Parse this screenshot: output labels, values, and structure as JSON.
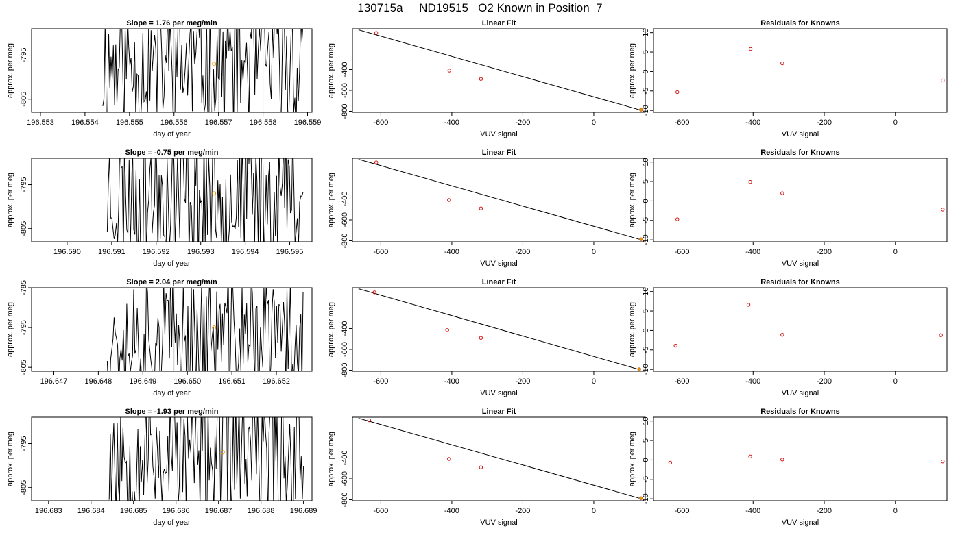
{
  "figure": {
    "title": "130715a     ND19515   O2 Known in Position  7"
  },
  "chart_data": [
    {
      "type": "line",
      "title": "Slope =  1.76  per meg/min",
      "xlabel": "day of year",
      "ylabel": "approx. per meg",
      "xlim": [
        196.5528,
        196.5591
      ],
      "ylim": [
        -808,
        -789
      ],
      "xticks": [
        "196.553",
        "196.554",
        "196.555",
        "196.556",
        "196.557",
        "196.558",
        "196.559"
      ],
      "yticks": [
        "-795",
        "-805"
      ],
      "ytick_values": [
        -795,
        -805
      ],
      "vlines": [
        196.556,
        196.557,
        196.558
      ],
      "x_start": 196.5544,
      "x_end": 196.5589,
      "noise_seed": 11,
      "marker": {
        "x": 196.5569,
        "y": -797
      }
    },
    {
      "type": "scatter",
      "title": "Linear Fit",
      "xlabel": "VUV signal",
      "ylabel": "approx. per meg",
      "xlim": [
        -680,
        145
      ],
      "ylim": [
        -810,
        -10
      ],
      "xticks": [
        "-600",
        "-400",
        "-200",
        "0"
      ],
      "xtick_values": [
        -600,
        -400,
        -200,
        0
      ],
      "yticks": [
        "-400",
        "-600",
        "-800"
      ],
      "ytick_values": [
        -400,
        -600,
        -800
      ],
      "points": [
        [
          -613,
          -50
        ],
        [
          -407,
          -410
        ],
        [
          -318,
          -490
        ],
        [
          133,
          -785
        ]
      ],
      "fit_line": [
        [
          -663,
          -20
        ],
        [
          133,
          -790
        ]
      ],
      "highlight_index": 3
    },
    {
      "type": "scatter",
      "title": "Residuals for Knowns",
      "xlabel": "VUV signal",
      "ylabel": "approx. per meg",
      "xlim": [
        -680,
        145
      ],
      "ylim": [
        -10.5,
        11
      ],
      "xticks": [
        "-600",
        "-400",
        "-200",
        "0"
      ],
      "xtick_values": [
        -600,
        -400,
        -200,
        0
      ],
      "yticks": [
        "-10",
        "-5",
        "0",
        "5",
        "10"
      ],
      "ytick_values": [
        -10,
        -5,
        0,
        5,
        10
      ],
      "points": [
        [
          -613,
          -5.3
        ],
        [
          -407,
          5.8
        ],
        [
          -318,
          2.1
        ],
        [
          133,
          -2.3
        ]
      ]
    },
    {
      "type": "line",
      "title": "Slope =  -0.75  per meg/min",
      "xlabel": "day of year",
      "ylabel": "approx. per meg",
      "xlim": [
        196.5892,
        196.5955
      ],
      "ylim": [
        -808,
        -789
      ],
      "xticks": [
        "196.590",
        "196.591",
        "196.592",
        "196.593",
        "196.594",
        "196.595"
      ],
      "yticks": [
        "-795",
        "-805"
      ],
      "ytick_values": [
        -795,
        -805
      ],
      "vlines": [
        196.5924,
        196.5942
      ],
      "x_start": 196.5909,
      "x_end": 196.5953,
      "noise_seed": 23,
      "marker": {
        "x": 196.5933,
        "y": -797
      }
    },
    {
      "type": "scatter",
      "title": "Linear Fit",
      "xlabel": "VUV signal",
      "ylabel": "approx. per meg",
      "xlim": [
        -680,
        145
      ],
      "ylim": [
        -810,
        -10
      ],
      "xticks": [
        "-600",
        "-400",
        "-200",
        "0"
      ],
      "xtick_values": [
        -600,
        -400,
        -200,
        0
      ],
      "yticks": [
        "-400",
        "-600",
        "-800"
      ],
      "ytick_values": [
        -400,
        -600,
        -800
      ],
      "points": [
        [
          -613,
          -50
        ],
        [
          -408,
          -410
        ],
        [
          -318,
          -490
        ],
        [
          133,
          -785
        ]
      ],
      "fit_line": [
        [
          -663,
          -20
        ],
        [
          133,
          -790
        ]
      ],
      "highlight_index": 3
    },
    {
      "type": "scatter",
      "title": "Residuals for Knowns",
      "xlabel": "VUV signal",
      "ylabel": "approx. per meg",
      "xlim": [
        -680,
        145
      ],
      "ylim": [
        -10.5,
        11
      ],
      "xticks": [
        "-600",
        "-400",
        "-200",
        "0"
      ],
      "xtick_values": [
        -600,
        -400,
        -200,
        0
      ],
      "yticks": [
        "-10",
        "-5",
        "0",
        "5",
        "10"
      ],
      "ytick_values": [
        -10,
        -5,
        0,
        5,
        10
      ],
      "points": [
        [
          -613,
          -4.7
        ],
        [
          -408,
          4.9
        ],
        [
          -318,
          2.0
        ],
        [
          133,
          -2.2
        ]
      ]
    },
    {
      "type": "line",
      "title": "Slope =  2.04  per meg/min",
      "xlabel": "day of year",
      "ylabel": "approx. per meg",
      "xlim": [
        196.6465,
        196.6528
      ],
      "ylim": [
        -806,
        -785
      ],
      "xticks": [
        "196.647",
        "196.648",
        "196.649",
        "196.650",
        "196.651",
        "196.652"
      ],
      "yticks": [
        "-785",
        "-795",
        "-805"
      ],
      "ytick_values": [
        -785,
        -795,
        -805
      ],
      "vlines": [
        196.6497,
        196.6515
      ],
      "x_start": 196.6482,
      "x_end": 196.6526,
      "noise_seed": 37,
      "marker": {
        "x": 196.6506,
        "y": -795
      }
    },
    {
      "type": "scatter",
      "title": "Linear Fit",
      "xlabel": "VUV signal",
      "ylabel": "approx. per meg",
      "xlim": [
        -680,
        145
      ],
      "ylim": [
        -810,
        -10
      ],
      "xticks": [
        "-600",
        "-400",
        "-200",
        "0"
      ],
      "xtick_values": [
        -600,
        -400,
        -200,
        0
      ],
      "yticks": [
        "-400",
        "-600",
        "-800"
      ],
      "ytick_values": [
        -400,
        -600,
        -800
      ],
      "points": [
        [
          -618,
          -55
        ],
        [
          -413,
          -415
        ],
        [
          -318,
          -490
        ],
        [
          128,
          -790
        ]
      ],
      "fit_line": [
        [
          -663,
          -20
        ],
        [
          128,
          -793
        ]
      ],
      "highlight_index": 3
    },
    {
      "type": "scatter",
      "title": "Residuals for Knowns",
      "xlabel": "VUV signal",
      "ylabel": "approx. per meg",
      "xlim": [
        -680,
        145
      ],
      "ylim": [
        -10.5,
        11
      ],
      "xticks": [
        "-600",
        "-400",
        "-200",
        "0"
      ],
      "xtick_values": [
        -600,
        -400,
        -200,
        0
      ],
      "yticks": [
        "-10",
        "-5",
        "0",
        "5",
        "10"
      ],
      "ytick_values": [
        -10,
        -5,
        0,
        5,
        10
      ],
      "points": [
        [
          -618,
          -3.9
        ],
        [
          -413,
          6.6
        ],
        [
          -318,
          -1.1
        ],
        [
          128,
          -1.2
        ]
      ]
    },
    {
      "type": "line",
      "title": "Slope =  -1.93  per meg/min",
      "xlabel": "day of year",
      "ylabel": "approx. per meg",
      "xlim": [
        196.6826,
        196.6892
      ],
      "ylim": [
        -808,
        -789
      ],
      "xticks": [
        "196.683",
        "196.684",
        "196.685",
        "196.686",
        "196.687",
        "196.688",
        "196.689"
      ],
      "yticks": [
        "-795",
        "-805"
      ],
      "ytick_values": [
        -795,
        -805
      ],
      "vlines": [
        196.6861,
        196.688
      ],
      "x_start": 196.6844,
      "x_end": 196.689,
      "noise_seed": 53,
      "marker": {
        "x": 196.6871,
        "y": -797
      }
    },
    {
      "type": "scatter",
      "title": "Linear Fit",
      "xlabel": "VUV signal",
      "ylabel": "approx. per meg",
      "xlim": [
        -680,
        145
      ],
      "ylim": [
        -810,
        -10
      ],
      "xticks": [
        "-600",
        "-400",
        "-200",
        "0"
      ],
      "xtick_values": [
        -600,
        -400,
        -200,
        0
      ],
      "yticks": [
        "-400",
        "-600",
        "-800"
      ],
      "ytick_values": [
        -400,
        -600,
        -800
      ],
      "points": [
        [
          -633,
          -40
        ],
        [
          -408,
          -410
        ],
        [
          -318,
          -490
        ],
        [
          133,
          -785
        ]
      ],
      "fit_line": [
        [
          -663,
          -20
        ],
        [
          133,
          -790
        ]
      ],
      "highlight_index": 3
    },
    {
      "type": "scatter",
      "title": "Residuals for Knowns",
      "xlabel": "VUV signal",
      "ylabel": "approx. per meg",
      "xlim": [
        -680,
        145
      ],
      "ylim": [
        -10.5,
        11
      ],
      "xticks": [
        "-600",
        "-400",
        "-200",
        "0"
      ],
      "xtick_values": [
        -600,
        -400,
        -200,
        0
      ],
      "yticks": [
        "-10",
        "-5",
        "0",
        "5",
        "10"
      ],
      "ytick_values": [
        -10,
        -5,
        0,
        5,
        10
      ],
      "points": [
        [
          -633,
          -0.7
        ],
        [
          -408,
          0.9
        ],
        [
          -318,
          0.1
        ],
        [
          133,
          -0.4
        ]
      ]
    }
  ]
}
